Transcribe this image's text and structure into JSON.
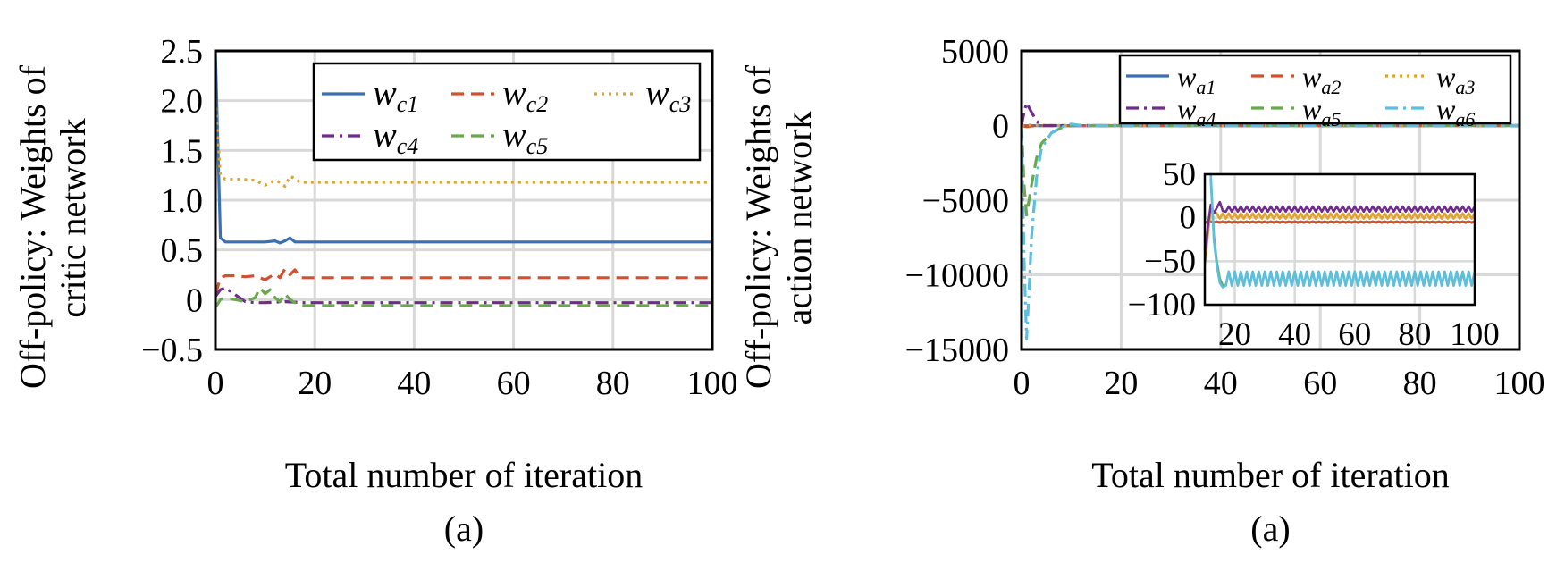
{
  "chart_data": [
    {
      "type": "line",
      "ylabel": "Off-policy:  Weights of critic network",
      "xlabel": "Total number of iteration",
      "caption": "(a)",
      "xlim": [
        0,
        100
      ],
      "ylim": [
        -0.5,
        2.5
      ],
      "xticks": [
        "0",
        "20",
        "40",
        "60",
        "80",
        "100"
      ],
      "yticks": [
        "2.5",
        "2.0",
        "1.5",
        "1.0",
        "0.5",
        "0",
        "−0.5"
      ],
      "grid": true,
      "legend_position": "top-right",
      "series": [
        {
          "name": "w",
          "sub": "c1",
          "color": "#3a6fb5",
          "dash": "solid",
          "points": [
            [
              0,
              2.5
            ],
            [
              1,
              0.62
            ],
            [
              2,
              0.58
            ],
            [
              5,
              0.58
            ],
            [
              8,
              0.58
            ],
            [
              10,
              0.58
            ],
            [
              12,
              0.59
            ],
            [
              13,
              0.57
            ],
            [
              14,
              0.59
            ],
            [
              15,
              0.62
            ],
            [
              16,
              0.58
            ],
            [
              18,
              0.58
            ],
            [
              20,
              0.58
            ],
            [
              100,
              0.58
            ]
          ]
        },
        {
          "name": "w",
          "sub": "c2",
          "color": "#d2502d",
          "dash": "dash",
          "points": [
            [
              0,
              0.05
            ],
            [
              1,
              0.22
            ],
            [
              2,
              0.24
            ],
            [
              4,
              0.24
            ],
            [
              6,
              0.23
            ],
            [
              8,
              0.24
            ],
            [
              10,
              0.2
            ],
            [
              12,
              0.26
            ],
            [
              13,
              0.22
            ],
            [
              14,
              0.31
            ],
            [
              15,
              0.25
            ],
            [
              16,
              0.3
            ],
            [
              17,
              0.22
            ],
            [
              20,
              0.22
            ],
            [
              100,
              0.22
            ]
          ]
        },
        {
          "name": "w",
          "sub": "c3",
          "color": "#e0a32c",
          "dash": "dot",
          "points": [
            [
              0,
              2.0
            ],
            [
              1,
              1.25
            ],
            [
              2,
              1.21
            ],
            [
              5,
              1.21
            ],
            [
              8,
              1.2
            ],
            [
              10,
              1.15
            ],
            [
              12,
              1.2
            ],
            [
              13,
              1.18
            ],
            [
              14,
              1.14
            ],
            [
              15,
              1.24
            ],
            [
              16,
              1.22
            ],
            [
              17,
              1.18
            ],
            [
              20,
              1.18
            ],
            [
              100,
              1.18
            ]
          ]
        },
        {
          "name": "w",
          "sub": "c4",
          "color": "#6e2c8e",
          "dash": "dashdot",
          "points": [
            [
              0,
              0.03
            ],
            [
              1,
              0.1
            ],
            [
              2,
              0.12
            ],
            [
              4,
              0.05
            ],
            [
              6,
              -0.02
            ],
            [
              8,
              -0.03
            ],
            [
              10,
              -0.03
            ],
            [
              14,
              -0.02
            ],
            [
              18,
              -0.03
            ],
            [
              100,
              -0.03
            ]
          ]
        },
        {
          "name": "w",
          "sub": "c5",
          "color": "#6aa84f",
          "dash": "dash",
          "points": [
            [
              0,
              -0.08
            ],
            [
              1,
              0.0
            ],
            [
              2,
              0.02
            ],
            [
              4,
              0.0
            ],
            [
              6,
              -0.02
            ],
            [
              8,
              0.02
            ],
            [
              9,
              0.12
            ],
            [
              10,
              0.06
            ],
            [
              11,
              0.1
            ],
            [
              12,
              0.02
            ],
            [
              13,
              -0.02
            ],
            [
              14,
              0.06
            ],
            [
              15,
              0.0
            ],
            [
              17,
              -0.06
            ],
            [
              20,
              -0.06
            ],
            [
              100,
              -0.06
            ]
          ]
        }
      ]
    },
    {
      "type": "line",
      "ylabel": "Off-policy:  Weights of action network",
      "xlabel": "Total number of iteration",
      "caption": "(a)",
      "xlim": [
        0,
        100
      ],
      "ylim": [
        -15000,
        5000
      ],
      "xticks": [
        "0",
        "20",
        "40",
        "60",
        "80",
        "100"
      ],
      "yticks": [
        "5000",
        "0",
        "−5000",
        "−10000",
        "−15000"
      ],
      "grid": true,
      "legend_position": "top-right",
      "series": [
        {
          "name": "w",
          "sub": "a1",
          "color": "#3a6fb5",
          "dash": "solid",
          "points": [
            [
              0,
              0
            ],
            [
              1,
              -20
            ],
            [
              2,
              -10
            ],
            [
              5,
              -5
            ],
            [
              100,
              -5
            ]
          ]
        },
        {
          "name": "w",
          "sub": "a2",
          "color": "#d2502d",
          "dash": "dash",
          "points": [
            [
              0,
              0
            ],
            [
              1,
              -80
            ],
            [
              2,
              -30
            ],
            [
              4,
              -10
            ],
            [
              100,
              -10
            ]
          ]
        },
        {
          "name": "w",
          "sub": "a3",
          "color": "#e0a32c",
          "dash": "dot",
          "points": [
            [
              0,
              0
            ],
            [
              1,
              60
            ],
            [
              2,
              20
            ],
            [
              5,
              5
            ],
            [
              100,
              5
            ]
          ]
        },
        {
          "name": "w",
          "sub": "a4",
          "color": "#6e2c8e",
          "dash": "dashdot",
          "points": [
            [
              0,
              0
            ],
            [
              0.5,
              900
            ],
            [
              1,
              1500
            ],
            [
              2,
              900
            ],
            [
              3,
              300
            ],
            [
              4,
              0
            ],
            [
              6,
              0
            ],
            [
              100,
              0
            ]
          ]
        },
        {
          "name": "w",
          "sub": "a5",
          "color": "#6aa84f",
          "dash": "dash",
          "points": [
            [
              0,
              0
            ],
            [
              0.5,
              -4000
            ],
            [
              1,
              -6000
            ],
            [
              2,
              -4000
            ],
            [
              3,
              -2200
            ],
            [
              4,
              -1200
            ],
            [
              6,
              -500
            ],
            [
              8,
              -150
            ],
            [
              10,
              0
            ],
            [
              100,
              0
            ]
          ]
        },
        {
          "name": "w",
          "sub": "a6",
          "color": "#5bbfe0",
          "dash": "dashdot",
          "points": [
            [
              0,
              -200
            ],
            [
              0.5,
              -9000
            ],
            [
              1,
              -14300
            ],
            [
              1.5,
              -11000
            ],
            [
              2,
              -7500
            ],
            [
              3,
              -3500
            ],
            [
              4,
              -1500
            ],
            [
              6,
              -500
            ],
            [
              8,
              -100
            ],
            [
              10,
              100
            ],
            [
              12,
              0
            ],
            [
              100,
              0
            ]
          ]
        }
      ],
      "inset": {
        "xlim": [
          10,
          100
        ],
        "ylim": [
          -100,
          50
        ],
        "xticks": [
          "20",
          "40",
          "60",
          "80",
          "100"
        ],
        "yticks": [
          "50",
          "0",
          "−50",
          "−100"
        ],
        "grid": true,
        "series": [
          {
            "sub": "a1",
            "color": "#3a6fb5",
            "base": -5,
            "amp": 0,
            "start": [
              [
                10,
                -5
              ]
            ]
          },
          {
            "sub": "a2",
            "color": "#d2502d",
            "base": -5,
            "amp": 0.8,
            "start": [
              [
                10,
                -5
              ]
            ]
          },
          {
            "sub": "a3",
            "color": "#e0a32c",
            "base": 2,
            "amp": 3,
            "start": [
              [
                10,
                -55
              ],
              [
                11,
                -20
              ],
              [
                12,
                10
              ],
              [
                14,
                5
              ]
            ]
          },
          {
            "sub": "a4",
            "color": "#6e2c8e",
            "base": 10,
            "amp": 3,
            "start": [
              [
                10,
                -50
              ],
              [
                11,
                -10
              ],
              [
                12,
                15
              ],
              [
                13,
                5
              ],
              [
                15,
                18
              ],
              [
                16,
                8
              ]
            ]
          },
          {
            "sub": "a5",
            "color": "#6aa84f",
            "base": -70,
            "amp": 8,
            "start": [
              [
                12,
                45
              ],
              [
                13,
                -20
              ],
              [
                14,
                -50
              ],
              [
                15,
                -70
              ],
              [
                16,
                -78
              ]
            ]
          },
          {
            "sub": "a6",
            "color": "#5bbfe0",
            "base": -70,
            "amp": 8,
            "start": [
              [
                12,
                50
              ],
              [
                13,
                -25
              ],
              [
                14,
                -55
              ],
              [
                15,
                -75
              ],
              [
                16,
                -80
              ]
            ]
          }
        ]
      }
    }
  ]
}
